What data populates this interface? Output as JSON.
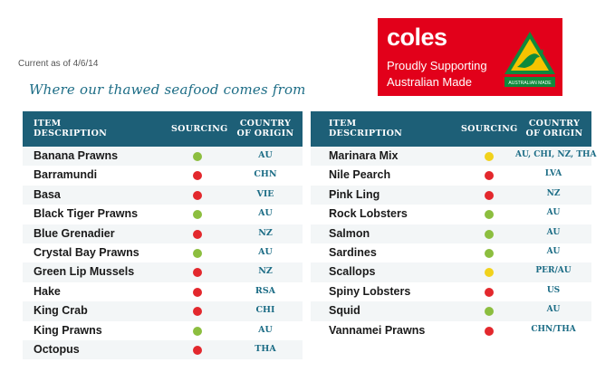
{
  "current_as_of": "Current as of 4/6/14",
  "heading": "Where our thawed seafood comes from",
  "brand": {
    "name": "coles",
    "tagline_line1": "Proudly Supporting",
    "tagline_line2": "Australian Made",
    "badge_text": "AUSTRALIAN MADE",
    "brand_color": "#e2001a",
    "badge_color": "#f6c400",
    "badge_kangaroo_color": "#0f8a3c"
  },
  "table_headers": {
    "item_line1": "ITEM",
    "item_line2": "DESCRIPTION",
    "sourcing": "SOURCING",
    "origin_line1": "COUNTRY",
    "origin_line2": "OF ORIGIN"
  },
  "status_colors": {
    "green": "#8cbe3f",
    "red": "#e3282d",
    "yellow": "#f1d21c"
  },
  "left_rows": [
    {
      "name": "Banana Prawns",
      "sourcing": "green",
      "origin": "AU"
    },
    {
      "name": "Barramundi",
      "sourcing": "red",
      "origin": "CHN"
    },
    {
      "name": "Basa",
      "sourcing": "red",
      "origin": "VIE"
    },
    {
      "name": "Black Tiger Prawns",
      "sourcing": "green",
      "origin": "AU"
    },
    {
      "name": "Blue Grenadier",
      "sourcing": "red",
      "origin": "NZ"
    },
    {
      "name": "Crystal Bay Prawns",
      "sourcing": "green",
      "origin": "AU"
    },
    {
      "name": "Green Lip Mussels",
      "sourcing": "red",
      "origin": "NZ"
    },
    {
      "name": "Hake",
      "sourcing": "red",
      "origin": "RSA"
    },
    {
      "name": "King Crab",
      "sourcing": "red",
      "origin": "CHI"
    },
    {
      "name": "King Prawns",
      "sourcing": "green",
      "origin": "AU"
    },
    {
      "name": "Octopus",
      "sourcing": "red",
      "origin": "THA"
    }
  ],
  "right_rows": [
    {
      "name": "Marinara Mix",
      "sourcing": "yellow",
      "origin": "AU, CHI, NZ, THA"
    },
    {
      "name": "Nile Pearch",
      "sourcing": "red",
      "origin": "LVA"
    },
    {
      "name": "Pink Ling",
      "sourcing": "red",
      "origin": "NZ"
    },
    {
      "name": "Rock Lobsters",
      "sourcing": "green",
      "origin": "AU"
    },
    {
      "name": "Salmon",
      "sourcing": "green",
      "origin": "AU"
    },
    {
      "name": "Sardines",
      "sourcing": "green",
      "origin": "AU"
    },
    {
      "name": "Scallops",
      "sourcing": "yellow",
      "origin": "PER/AU"
    },
    {
      "name": "Spiny Lobsters",
      "sourcing": "red",
      "origin": "US"
    },
    {
      "name": "Squid",
      "sourcing": "green",
      "origin": "AU"
    },
    {
      "name": "Vannamei Prawns",
      "sourcing": "red",
      "origin": "CHN/THA"
    }
  ]
}
